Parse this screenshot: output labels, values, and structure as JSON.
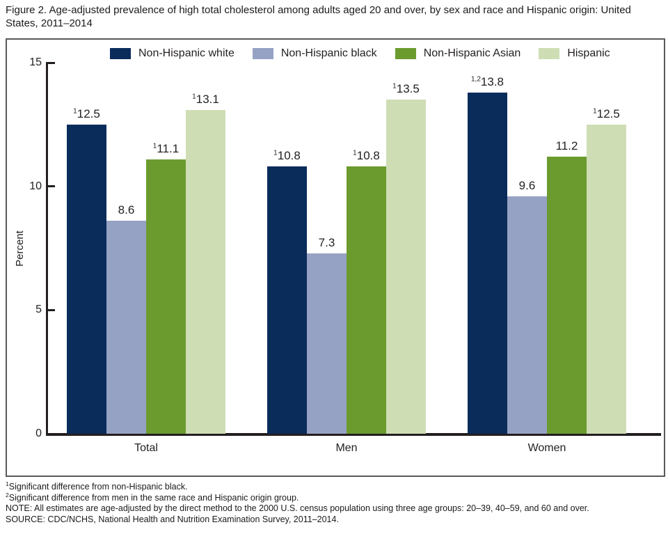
{
  "chart_data": {
    "type": "bar",
    "title": "Figure 2. Age-adjusted prevalence of high total cholesterol among adults aged 20 and over, by sex and race and Hispanic origin: United States, 2011–2014",
    "categories": [
      "Total",
      "Men",
      "Women"
    ],
    "series": [
      {
        "name": "Non-Hispanic white",
        "color": "#0a2c5a",
        "values": [
          12.5,
          10.8,
          13.8
        ],
        "label_superscripts": [
          "1",
          "1",
          "1,2"
        ]
      },
      {
        "name": "Non-Hispanic black",
        "color": "#96a2c4",
        "values": [
          8.6,
          7.3,
          9.6
        ],
        "label_superscripts": [
          "",
          "",
          ""
        ]
      },
      {
        "name": "Non-Hispanic Asian",
        "color": "#6b9b2f",
        "values": [
          11.1,
          10.8,
          11.2
        ],
        "label_superscripts": [
          "1",
          "1",
          ""
        ]
      },
      {
        "name": "Hispanic",
        "color": "#cfddb5",
        "values": [
          13.1,
          13.5,
          12.5
        ],
        "label_superscripts": [
          "1",
          "1",
          "1"
        ]
      }
    ],
    "xlabel": "",
    "ylabel": "Percent",
    "yticks": [
      0,
      5,
      10,
      15
    ],
    "ylim": [
      0,
      15
    ],
    "grid": false,
    "legend_position": "top"
  },
  "footnotes": [
    {
      "sup": "1",
      "text": "Significant difference from non-Hispanic black."
    },
    {
      "sup": "2",
      "text": "Significant difference from men in the same race and Hispanic origin group."
    },
    {
      "sup": "",
      "text": "NOTE: All estimates are age-adjusted by the direct method to the 2000 U.S. census population using three age groups: 20–39, 40–59, and 60 and over."
    },
    {
      "sup": "",
      "text": "SOURCE: CDC/NCHS, National Health and Nutrition Examination Survey, 2011–2014."
    }
  ]
}
